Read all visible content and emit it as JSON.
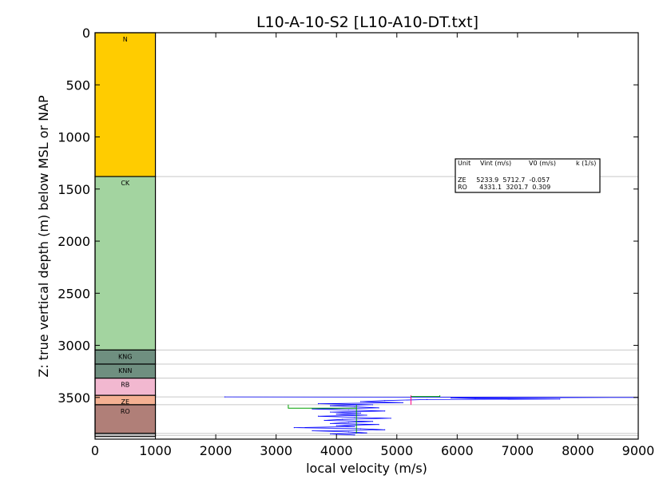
{
  "chart_data": {
    "type": "line",
    "title": "L10-A-10-S2 [L10-A10-DT.txt]",
    "xlabel": "local velocity (m/s)",
    "ylabel": "Z: true vertical depth (m) below MSL or NAP",
    "xlim": [
      0,
      9000
    ],
    "ylim": [
      3900,
      0
    ],
    "xticks": [
      "0",
      "1000",
      "2000",
      "3000",
      "4000",
      "5000",
      "6000",
      "7000",
      "8000",
      "9000"
    ],
    "yticks": [
      "0",
      "500",
      "1000",
      "1500",
      "2000",
      "2500",
      "3000",
      "3500"
    ],
    "lithology_column": {
      "x_range": [
        0,
        1000
      ],
      "units": [
        {
          "label": "N",
          "top": 0,
          "base": 1380,
          "color": "#FFCC00"
        },
        {
          "label": "CK",
          "top": 1380,
          "base": 3045,
          "color": "#A3D4A0"
        },
        {
          "label": "KNG",
          "top": 3045,
          "base": 3180,
          "color": "#6F8F80"
        },
        {
          "label": "KNN",
          "top": 3180,
          "base": 3315,
          "color": "#6F8F80"
        },
        {
          "label": "RB",
          "top": 3315,
          "base": 3480,
          "color": "#F2B8D0"
        },
        {
          "label": "ZE",
          "top": 3480,
          "base": 3570,
          "color": "#F4B092"
        },
        {
          "label": "RO",
          "top": 3570,
          "base": 3845,
          "color": "#B07F78"
        },
        {
          "label": "",
          "top": 3845,
          "base": 3875,
          "color": "#C0C0C0"
        }
      ]
    },
    "horizons": [
      1380,
      3045,
      3180,
      3315,
      3495,
      3570,
      3845,
      3865
    ],
    "velocity_log": {
      "color": "#0000FF",
      "depths": [
        3495,
        3500,
        3505,
        3510,
        3515,
        3520,
        3530,
        3540,
        3550,
        3560,
        3570,
        3580,
        3590,
        3600,
        3610,
        3620,
        3630,
        3640,
        3650,
        3660,
        3670,
        3680,
        3690,
        3700,
        3710,
        3720,
        3730,
        3740,
        3750,
        3760,
        3770,
        3780,
        3790,
        3800,
        3810,
        3820,
        3830,
        3840,
        3850,
        3860
      ],
      "velocities": [
        2150,
        9000,
        5900,
        6300,
        7700,
        5500,
        4800,
        4400,
        5100,
        3700,
        4600,
        3900,
        4300,
        4700,
        3600,
        4200,
        4800,
        3900,
        4400,
        4000,
        4500,
        3700,
        4300,
        4900,
        4100,
        3800,
        4600,
        4200,
        3900,
        4700,
        4000,
        4300,
        3300,
        4400,
        4800,
        3600,
        4200,
        4500,
        3900,
        4300
      ]
    },
    "unit_fits": [
      {
        "unit": "ZE",
        "vint": 5233.9,
        "v0": 5712.7,
        "k": -0.057,
        "top": 3480,
        "base": 3570,
        "color": "#FF0080"
      },
      {
        "unit": "RO",
        "vint": 4331.1,
        "v0": 3201.7,
        "k": 0.309,
        "top": 3570,
        "base": 3845,
        "color": "#00A000"
      }
    ],
    "table": {
      "headers": [
        "Unit",
        "Vint (m/s)",
        "V0 (m/s)",
        "k (1/s)"
      ],
      "rows": [
        "ZE     5233.9  5712.7  -0.057",
        "RO      4331.1  3201.7  0.309"
      ]
    }
  }
}
